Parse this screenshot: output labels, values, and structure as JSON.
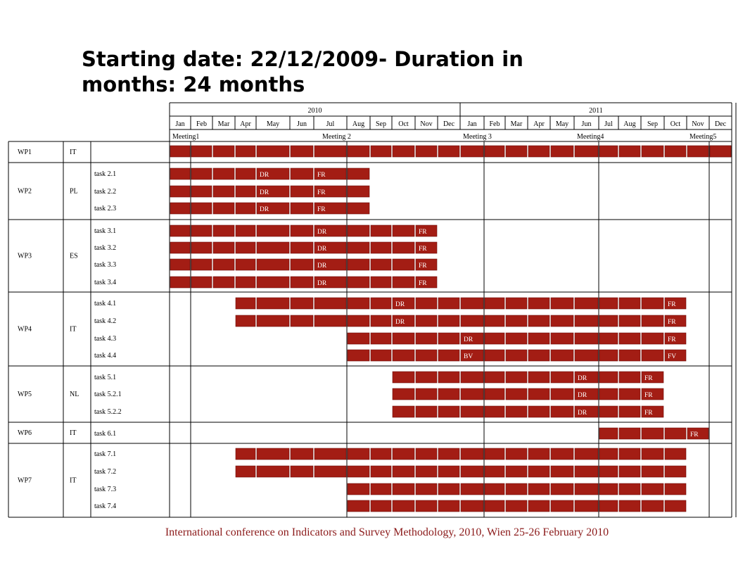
{
  "title": "Starting date: 22/12/2009- Duration in months: 24 months",
  "footer": "International conference on Indicators and Survey Methodology, 2010, Wien 25-26 February 2010",
  "colors": {
    "bar": "#a31d14",
    "bar_dark": "#6e0f0a",
    "grid": "#000000"
  },
  "years": [
    {
      "label": "2010",
      "start_month": 1,
      "end_month": 12
    },
    {
      "label": "2011",
      "start_month": 13,
      "end_month": 24
    }
  ],
  "months": [
    "Jan",
    "Feb",
    "Mar",
    "Apr",
    "May",
    "Jun",
    "Jul",
    "Aug",
    "Sep",
    "Oct",
    "Nov",
    "Dec",
    "Jan",
    "Feb",
    "Mar",
    "Apr",
    "May",
    "Jun",
    "Jul",
    "Aug",
    "Sep",
    "Oct",
    "Nov",
    "Dec"
  ],
  "meetings": [
    {
      "label": "Meeting1",
      "month": 1
    },
    {
      "label": "Meeting 2",
      "month": 7
    },
    {
      "label": "Meeting 3",
      "month": 13
    },
    {
      "label": "Meeting4",
      "month": 18
    },
    {
      "label": "Meeting5",
      "month": 23
    }
  ],
  "work_packages": [
    {
      "wp": "WP1",
      "partner": "IT",
      "tasks": [
        {
          "name": "",
          "start": 1,
          "end": 25,
          "labels": []
        }
      ]
    },
    {
      "wp": "WP2",
      "partner": "PL",
      "tasks": [
        {
          "name": "task 2.1",
          "start": 1,
          "end": 8,
          "labels": [
            {
              "text": "DR",
              "month": 5
            },
            {
              "text": "FR",
              "month": 7
            }
          ]
        },
        {
          "name": "task 2.2",
          "start": 1,
          "end": 8,
          "labels": [
            {
              "text": "DR",
              "month": 5
            },
            {
              "text": "FR",
              "month": 7
            }
          ]
        },
        {
          "name": "task 2.3",
          "start": 1,
          "end": 8,
          "labels": [
            {
              "text": "DR",
              "month": 5
            },
            {
              "text": "FR",
              "month": 7
            }
          ]
        }
      ]
    },
    {
      "wp": "WP3",
      "partner": "ES",
      "tasks": [
        {
          "name": "task 3.1",
          "start": 1,
          "end": 11,
          "labels": [
            {
              "text": "DR",
              "month": 7
            },
            {
              "text": "FR",
              "month": 11
            }
          ]
        },
        {
          "name": "task 3.2",
          "start": 1,
          "end": 11,
          "labels": [
            {
              "text": "DR",
              "month": 7
            },
            {
              "text": "FR",
              "month": 11
            }
          ]
        },
        {
          "name": "task 3.3",
          "start": 1,
          "end": 11,
          "labels": [
            {
              "text": "DR",
              "month": 7
            },
            {
              "text": "FR",
              "month": 11
            }
          ]
        },
        {
          "name": "task 3.4",
          "start": 1,
          "end": 11,
          "labels": [
            {
              "text": "DR",
              "month": 7
            },
            {
              "text": "FR",
              "month": 11
            }
          ]
        }
      ]
    },
    {
      "wp": "WP4",
      "partner": "IT",
      "tasks": [
        {
          "name": "task 4.1",
          "start": 4,
          "end": 22,
          "labels": [
            {
              "text": "DR",
              "month": 10
            },
            {
              "text": "FR",
              "month": 22
            }
          ]
        },
        {
          "name": "task 4.2",
          "start": 4,
          "end": 22,
          "labels": [
            {
              "text": "DR",
              "month": 10
            },
            {
              "text": "FR",
              "month": 22
            }
          ]
        },
        {
          "name": "task 4.3",
          "start": 8,
          "end": 22,
          "labels": [
            {
              "text": "DR",
              "month": 13
            },
            {
              "text": "FR",
              "month": 22
            }
          ]
        },
        {
          "name": "task 4.4",
          "start": 8,
          "end": 22,
          "labels": [
            {
              "text": "BV",
              "month": 13
            },
            {
              "text": "FV",
              "month": 22
            }
          ]
        }
      ]
    },
    {
      "wp": "WP5",
      "partner": "NL",
      "tasks": [
        {
          "name": "task 5.1",
          "start": 10,
          "end": 21,
          "labels": [
            {
              "text": "DR",
              "month": 18
            },
            {
              "text": "FR",
              "month": 21
            }
          ]
        },
        {
          "name": "task 5.2.1",
          "start": 10,
          "end": 21,
          "labels": [
            {
              "text": "DR",
              "month": 18
            },
            {
              "text": "FR",
              "month": 21
            }
          ]
        },
        {
          "name": "task 5.2.2",
          "start": 10,
          "end": 21,
          "labels": [
            {
              "text": "DR",
              "month": 18
            },
            {
              "text": "FR",
              "month": 21
            }
          ]
        }
      ]
    },
    {
      "wp": "WP6",
      "partner": "IT",
      "tasks": [
        {
          "name": "task 6.1",
          "start": 19,
          "end": 23,
          "labels": [
            {
              "text": "FR",
              "month": 23
            }
          ]
        }
      ]
    },
    {
      "wp": "WP7",
      "partner": "IT",
      "tasks": [
        {
          "name": "task 7.1",
          "start": 4,
          "end": 22,
          "labels": []
        },
        {
          "name": "task 7.2",
          "start": 4,
          "end": 22,
          "labels": []
        },
        {
          "name": "task 7.3",
          "start": 8,
          "end": 22,
          "labels": []
        },
        {
          "name": "task 7.4",
          "start": 8,
          "end": 22,
          "labels": []
        }
      ]
    }
  ]
}
